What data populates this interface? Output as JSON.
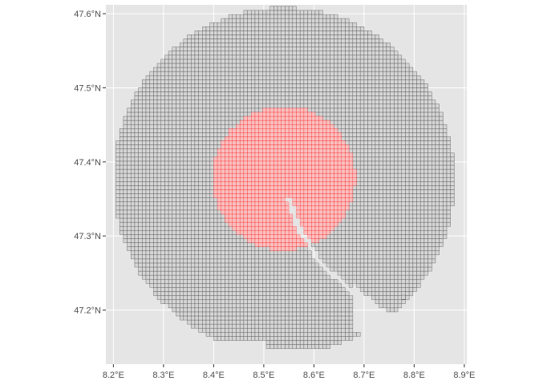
{
  "map": {
    "x_axis": {
      "unit_suffix": "°E",
      "lim": [
        8.185,
        8.905
      ],
      "ticks": [
        8.2,
        8.3,
        8.4,
        8.5,
        8.6,
        8.7,
        8.8,
        8.9
      ],
      "tick_labels": [
        "8.2°E",
        "8.3°E",
        "8.4°E",
        "8.5°E",
        "8.6°E",
        "8.7°E",
        "8.8°E",
        "8.9°E"
      ]
    },
    "y_axis": {
      "lim": [
        47.127,
        47.612
      ],
      "ticks": [
        47.2,
        47.3,
        47.4,
        47.5,
        47.6
      ],
      "tick_labels": [
        "47.2°N",
        "47.3°N",
        "47.4°N",
        "47.5°N",
        "47.6°N"
      ]
    },
    "grid": {
      "origin_lon": 8.205,
      "origin_lat": 47.148,
      "cell_lon": 0.0075,
      "cell_lat": 0.0055,
      "outer_center": [
        8.54,
        47.375
      ],
      "outer_radius_lon": 0.34,
      "outer_radius_lat": 0.233,
      "inner_center": [
        8.54,
        47.378
      ],
      "inner_radius_lon": 0.142,
      "inner_radius_lat": 0.097
    },
    "gap_line": [
      [
        8.55,
        47.35
      ],
      [
        8.57,
        47.31
      ],
      [
        8.59,
        47.29
      ],
      [
        8.61,
        47.265
      ],
      [
        8.66,
        47.235
      ],
      [
        8.69,
        47.215
      ]
    ],
    "colors": {
      "panel": "#e5e5e5",
      "gridline": "#ffffff",
      "cell_fill": "#d6d6d6",
      "cell_stroke": "#555555",
      "inner_fill": "#ffb3b3",
      "inner_stroke": "#ff0000"
    }
  }
}
